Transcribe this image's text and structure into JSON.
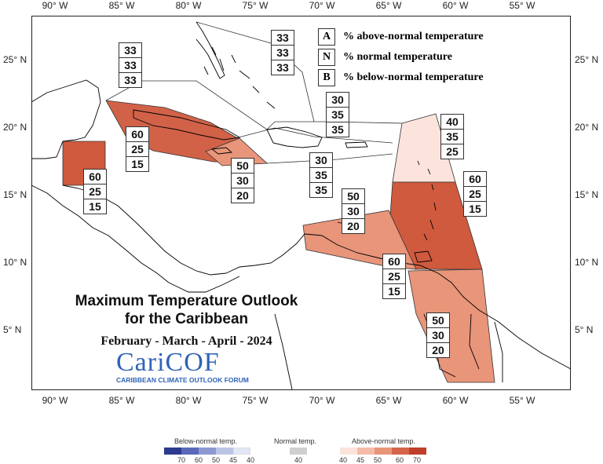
{
  "map": {
    "lon_ticks": [
      "90° W",
      "85° W",
      "80° W",
      "75° W",
      "70° W",
      "65° W",
      "60° W",
      "55° W"
    ],
    "lat_ticks": [
      "25° N",
      "20° N",
      "15° N",
      "10° N",
      "5° N"
    ],
    "colors": {
      "sea": "#ffffff",
      "coast": "#000000",
      "above_40": "#fce4dc",
      "above_50": "#e8957a",
      "above_60": "#cf5a3e"
    }
  },
  "legend": {
    "A": "A",
    "A_text": "% above-normal temperature",
    "N": "N",
    "N_text": "% normal temperature",
    "B": "B",
    "B_text": "% below-normal temperature"
  },
  "regions": [
    {
      "name": "bahamas-north",
      "A": "33",
      "N": "33",
      "B": "33"
    },
    {
      "name": "bahamas-east",
      "A": "33",
      "N": "33",
      "B": "33"
    },
    {
      "name": "cuba",
      "A": "60",
      "N": "25",
      "B": "15"
    },
    {
      "name": "belize",
      "A": "60",
      "N": "25",
      "B": "15"
    },
    {
      "name": "jamaica",
      "A": "50",
      "N": "30",
      "B": "20"
    },
    {
      "name": "hispaniola-north",
      "A": "30",
      "N": "35",
      "B": "35"
    },
    {
      "name": "hispaniola-south",
      "A": "30",
      "N": "35",
      "B": "35"
    },
    {
      "name": "leeward-islands",
      "A": "40",
      "N": "35",
      "B": "25"
    },
    {
      "name": "windward-islands",
      "A": "60",
      "N": "25",
      "B": "15"
    },
    {
      "name": "abc-islands",
      "A": "50",
      "N": "30",
      "B": "20"
    },
    {
      "name": "trinidad",
      "A": "60",
      "N": "25",
      "B": "15"
    },
    {
      "name": "guianas",
      "A": "50",
      "N": "30",
      "B": "20"
    }
  ],
  "title": {
    "line1": "Maximum Temperature Outlook",
    "line2": "for the Caribbean",
    "period": "February - March - April - 2024"
  },
  "logo": {
    "word": "CariCOF",
    "sub": "CARIBBEAN CLIMATE OUTLOOK FORUM"
  },
  "colorbar": {
    "below_label": "Below-normal temp.",
    "normal_label": "Normal temp.",
    "above_label": "Above-normal temp.",
    "below_ticks": [
      "70",
      "60",
      "50",
      "45",
      "40"
    ],
    "normal_ticks": [
      "40"
    ],
    "above_ticks": [
      "40",
      "45",
      "50",
      "60",
      "70"
    ],
    "below_colors": [
      "#2c3a8f",
      "#5a6ab8",
      "#8c98d0",
      "#bcc4e6",
      "#e2e7f6"
    ],
    "normal_colors": [
      "#cfcfcf"
    ],
    "above_colors": [
      "#fce4dc",
      "#f4bca8",
      "#e8957a",
      "#d4654a",
      "#bf3f2a"
    ]
  }
}
